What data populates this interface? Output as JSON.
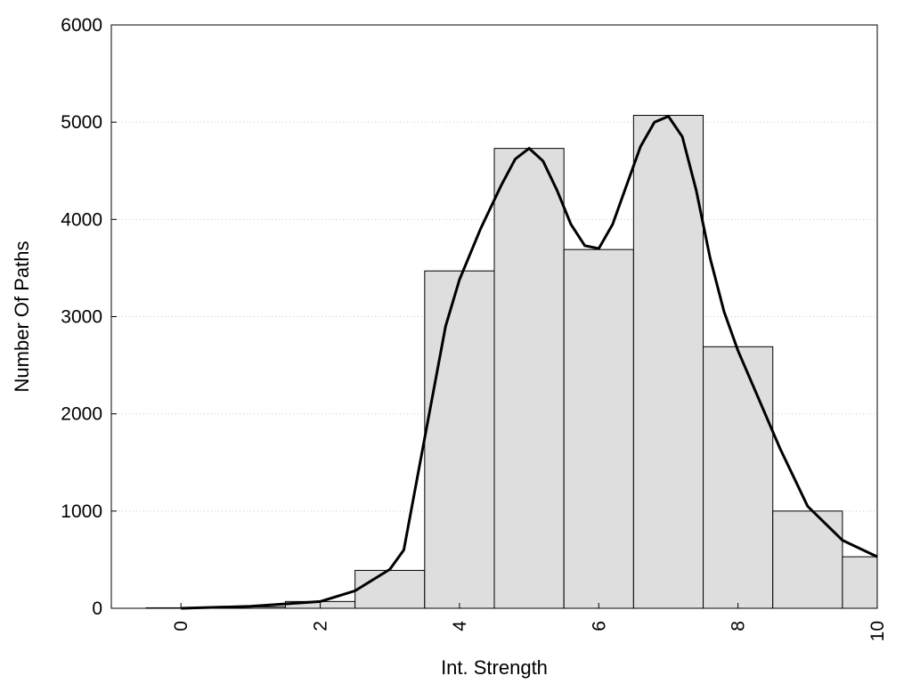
{
  "chart_data": {
    "type": "bar",
    "xlabel": "Int. Strength",
    "ylabel": "Number Of Paths",
    "xlim": [
      -1,
      10
    ],
    "ylim": [
      0,
      6000
    ],
    "x_ticks": [
      0,
      2,
      4,
      6,
      8,
      10
    ],
    "y_ticks": [
      0,
      1000,
      2000,
      3000,
      4000,
      5000,
      6000
    ],
    "grid": "horizontal dotted",
    "bar_width": 1,
    "bars": [
      {
        "x": 0,
        "value": 5
      },
      {
        "x": 1,
        "value": 15
      },
      {
        "x": 2,
        "value": 70
      },
      {
        "x": 3,
        "value": 390
      },
      {
        "x": 4,
        "value": 3470
      },
      {
        "x": 5,
        "value": 4730
      },
      {
        "x": 6,
        "value": 3690
      },
      {
        "x": 7,
        "value": 5070
      },
      {
        "x": 8,
        "value": 2690
      },
      {
        "x": 9,
        "value": 1000
      },
      {
        "x": 10,
        "value": 530
      }
    ],
    "curve": {
      "x": [
        0,
        1,
        2,
        2.5,
        3,
        3.2,
        3.5,
        3.8,
        4,
        4.3,
        4.6,
        4.8,
        5,
        5.2,
        5.4,
        5.6,
        5.8,
        6,
        6.2,
        6.4,
        6.6,
        6.8,
        7,
        7.2,
        7.4,
        7.6,
        7.8,
        8,
        8.3,
        8.6,
        9,
        9.5,
        10
      ],
      "y": [
        0,
        20,
        70,
        180,
        400,
        600,
        1750,
        2900,
        3380,
        3900,
        4350,
        4620,
        4730,
        4600,
        4300,
        3950,
        3730,
        3700,
        3950,
        4350,
        4750,
        5000,
        5060,
        4850,
        4300,
        3600,
        3050,
        2650,
        2150,
        1650,
        1050,
        700,
        530
      ]
    },
    "colors": {
      "bar_fill": "#dedede",
      "bar_stroke": "#000000",
      "curve": "#000000",
      "grid": "#c8c8c8"
    }
  }
}
